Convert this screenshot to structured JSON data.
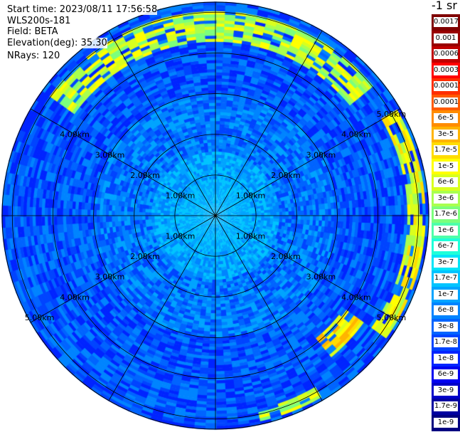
{
  "header": {
    "start_time": "Start time: 2023/08/11 17:56:58",
    "instrument": "WLS200s-181",
    "field": "Field: BETA",
    "elevation": "Elevation(deg): 35.30",
    "nrays": "NRays: 120"
  },
  "colorbar": {
    "unit": "-1 sr",
    "labels": [
      "0.0017",
      "0.001",
      "0.0006",
      "0.0003",
      "0.00017",
      "0.0001",
      "6e-5",
      "3e-5",
      "1.7e-5",
      "1e-5",
      "6e-6",
      "3e-6",
      "1.7e-6",
      "1e-6",
      "6e-7",
      "3e-7",
      "1.7e-7",
      "1e-7",
      "6e-8",
      "3e-8",
      "1.7e-8",
      "1e-8",
      "6e-9",
      "3e-9",
      "1.7e-9",
      "1e-9"
    ],
    "colors": [
      "#7f0000",
      "#990000",
      "#c00000",
      "#ff0000",
      "#ff2e00",
      "#ff5a00",
      "#ff8c00",
      "#ffb400",
      "#ffdc00",
      "#ffff00",
      "#d9ff1e",
      "#a9ff4e",
      "#7cff7c",
      "#4effa9",
      "#1effd9",
      "#00e4f8",
      "#00c4ff",
      "#00a4ff",
      "#0084ff",
      "#0064ff",
      "#0044ff",
      "#0024ff",
      "#0000f0",
      "#0000c8",
      "#0000a0",
      "#000080"
    ]
  },
  "chart_data": {
    "type": "heatmap",
    "title": "",
    "field": "BETA",
    "instrument": "WLS200s-181",
    "start_time": "2023/08/11 17:56:58",
    "elevation_deg": 35.3,
    "n_rays": 120,
    "range_ring_km": [
      1,
      2,
      3,
      4,
      5
    ],
    "range_ring_labels": [
      "1.00km",
      "2.00km",
      "3.00km",
      "4.00km",
      "5.00km"
    ],
    "max_range_km": 5.25,
    "spoke_step_deg": 30,
    "background_level_index": 19,
    "features": [
      {
        "description_ref": "arc-north-northeast",
        "azimuth_deg": [
          -55,
          50
        ],
        "range_km": [
          4.3,
          5.05
        ],
        "level_index": 10
      },
      {
        "description_ref": "arc-east",
        "azimuth_deg": [
          60,
          125
        ],
        "range_km": [
          4.75,
          5.2
        ],
        "level_index": 9
      },
      {
        "description_ref": "patch-southeast",
        "azimuth_deg": [
          125,
          140
        ],
        "range_km": [
          3.9,
          4.5
        ],
        "level_index": 8
      },
      {
        "description_ref": "patch-south",
        "azimuth_deg": [
          150,
          165
        ],
        "range_km": [
          4.9,
          5.2
        ],
        "level_index": 10
      }
    ]
  }
}
